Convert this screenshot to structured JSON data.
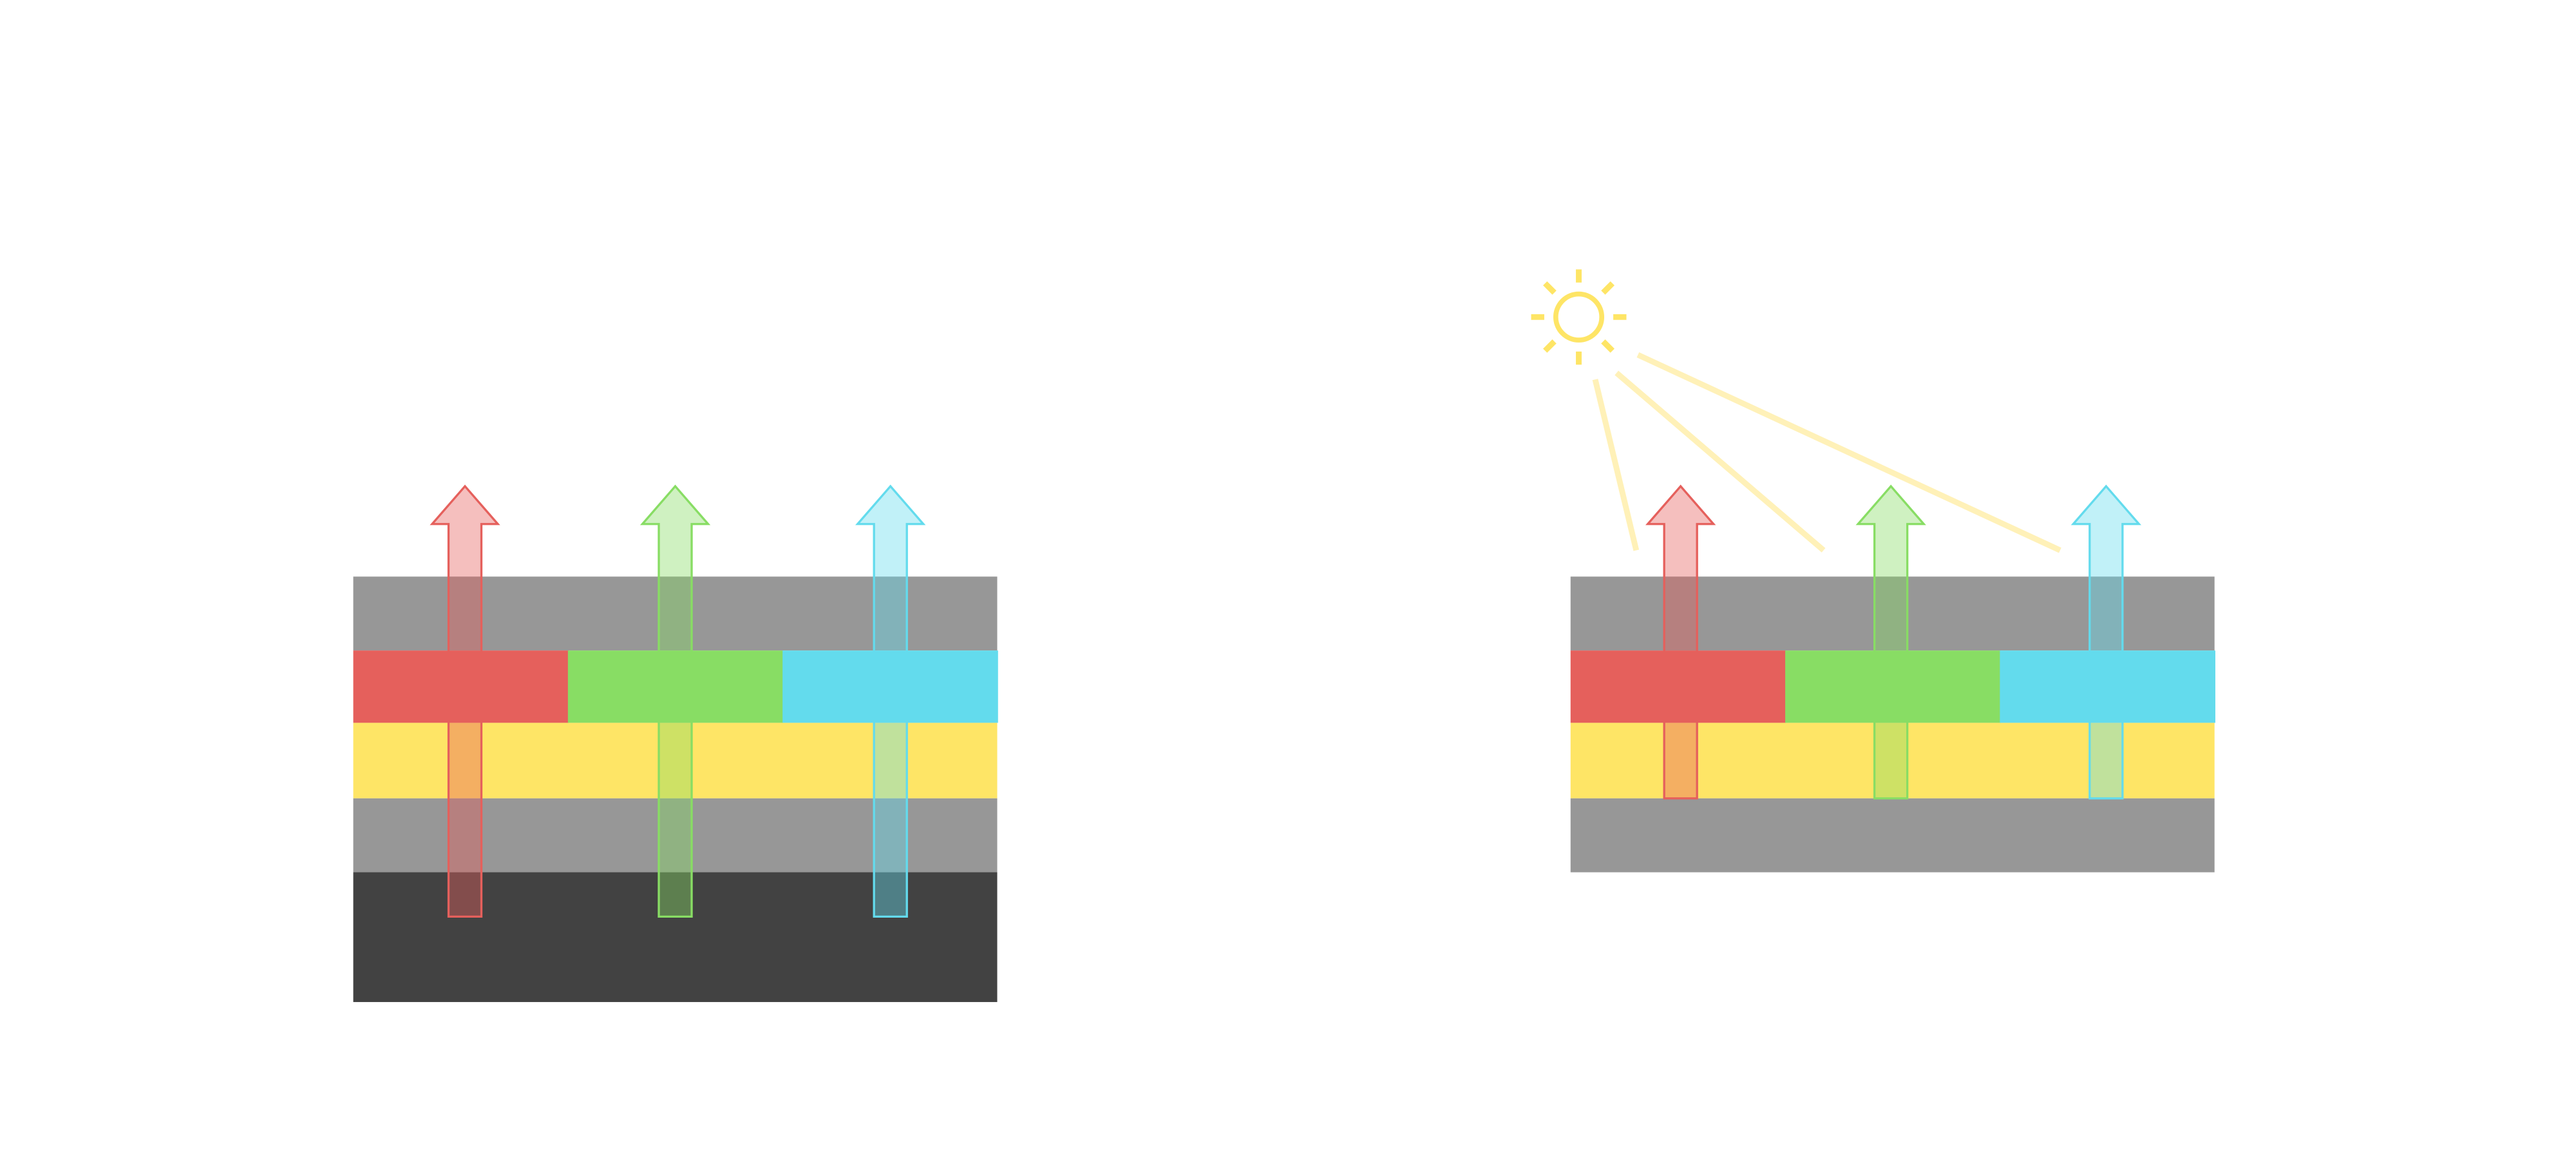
{
  "colors": {
    "background": "#ffffff",
    "gray_layer": "#979797",
    "dark_layer": "#424242",
    "red": "#e5605c",
    "green": "#88dd64",
    "cyan": "#63dbed",
    "yellow": "#fee566",
    "light_ray": "#fff1b8"
  },
  "diagrams": [
    {
      "name": "stack-with-backlight",
      "arrows": [
        "red",
        "green",
        "cyan"
      ]
    },
    {
      "name": "stack-with-ambient-light",
      "arrows": [
        "red",
        "green",
        "cyan"
      ],
      "light_source": "sun-icon"
    }
  ]
}
